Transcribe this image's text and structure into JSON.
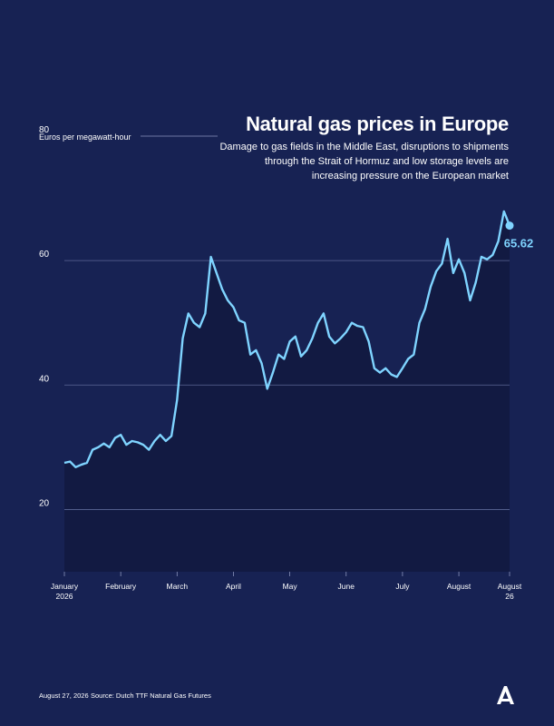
{
  "chart_data": {
    "type": "area",
    "title": "Natural gas prices in Europe",
    "subtitle": "Damage to gas fields in the Middle East, disruptions to shipments\nthrough the Strait of Hormuz and low storage levels are\nincreasing pressure on the European market",
    "y_label": "Euros per megawatt-hour",
    "categories": [
      "January\n2026",
      null,
      null,
      null,
      null,
      null,
      null,
      null,
      null,
      null,
      "February",
      null,
      null,
      null,
      null,
      null,
      null,
      null,
      null,
      null,
      "March",
      null,
      null,
      null,
      null,
      null,
      null,
      null,
      null,
      null,
      "April",
      null,
      null,
      null,
      null,
      null,
      null,
      null,
      null,
      null,
      "May",
      null,
      null,
      null,
      null,
      null,
      null,
      null,
      null,
      null,
      "June",
      null,
      null,
      null,
      null,
      null,
      null,
      null,
      null,
      null,
      "July",
      null,
      null,
      null,
      null,
      null,
      null,
      null,
      null,
      null,
      "August",
      null,
      null,
      null,
      null,
      null,
      null,
      null,
      null,
      "August\n26"
    ],
    "values": [
      27.5,
      27.7,
      26.8,
      27.2,
      27.5,
      29.6,
      30,
      30.6,
      30,
      31.5,
      32,
      30.4,
      31,
      30.8,
      30.4,
      29.6,
      31,
      32,
      31,
      31.8,
      37.6,
      47.5,
      51.5,
      50,
      49.3,
      51.5,
      60.6,
      58,
      55.4,
      53.6,
      52.5,
      50.4,
      50,
      44.9,
      45.6,
      43.5,
      39.4,
      42,
      44.9,
      44.2,
      47,
      47.8,
      44.6,
      45.6,
      47.5,
      50,
      51.5,
      47.8,
      46.7,
      47.5,
      48.5,
      50,
      49.5,
      49.3,
      47,
      42.7,
      42,
      42.7,
      41.7,
      41.3,
      42.7,
      44.2,
      44.9,
      50,
      52.2,
      55.8,
      58.3,
      59.5,
      63.5,
      58,
      60.2,
      58,
      53.6,
      56.5,
      60.6,
      60.2,
      60.9,
      63.1,
      67.9,
      65.62
    ],
    "color": "#7fd4ff",
    "ylim": [
      10,
      80
    ],
    "yticks": [
      20,
      40,
      60,
      80
    ],
    "grid": true
  },
  "footer": {
    "date": "August 27, 2026",
    "source": "Source: Dutch TTF Natural Gas Futures"
  }
}
